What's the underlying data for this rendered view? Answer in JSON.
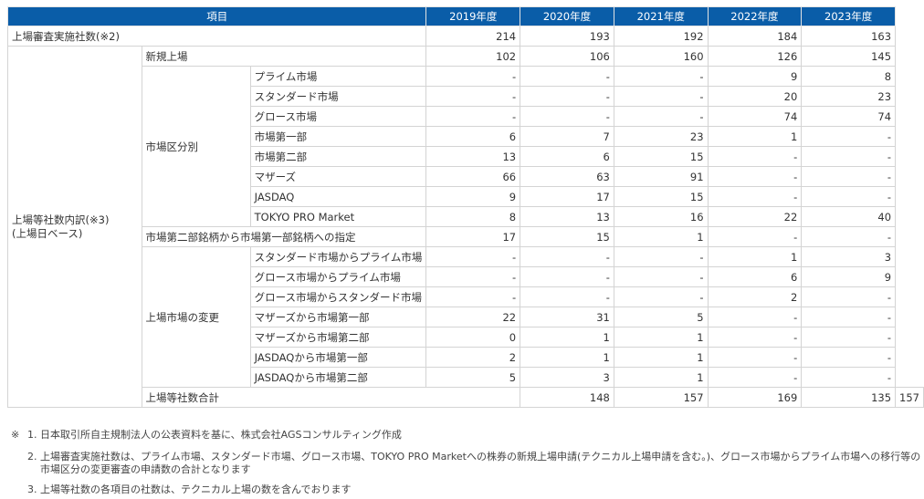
{
  "table": {
    "headers": [
      "項目",
      "2019年度",
      "2020年度",
      "2021年度",
      "2022年度",
      "2023年度"
    ],
    "rows": {
      "total_examined": {
        "label": "上場審査実施社数(※2)",
        "values": [
          "214",
          "193",
          "192",
          "184",
          "163"
        ]
      },
      "new_listing": {
        "label": "新規上場",
        "values": [
          "102",
          "106",
          "160",
          "126",
          "145"
        ]
      },
      "breakdown_label": "上場等社数内訳(※3)\n(上場日ベース)",
      "market_segment_label": "市場区分別",
      "segments": [
        {
          "label": "プライム市場",
          "values": [
            "-",
            "-",
            "-",
            "9",
            "8"
          ]
        },
        {
          "label": "スタンダード市場",
          "values": [
            "-",
            "-",
            "-",
            "20",
            "23"
          ]
        },
        {
          "label": "グロース市場",
          "values": [
            "-",
            "-",
            "-",
            "74",
            "74"
          ]
        },
        {
          "label": "市場第一部",
          "values": [
            "6",
            "7",
            "23",
            "1",
            "-"
          ]
        },
        {
          "label": "市場第二部",
          "values": [
            "13",
            "6",
            "15",
            "-",
            "-"
          ]
        },
        {
          "label": "マザーズ",
          "values": [
            "66",
            "63",
            "91",
            "-",
            "-"
          ]
        },
        {
          "label": "JASDAQ",
          "values": [
            "9",
            "17",
            "15",
            "-",
            "-"
          ]
        },
        {
          "label": "TOKYO PRO Market",
          "values": [
            "8",
            "13",
            "16",
            "22",
            "40"
          ]
        }
      ],
      "designation": {
        "label": "市場第二部銘柄から市場第一部銘柄への指定",
        "values": [
          "17",
          "15",
          "1",
          "-",
          "-"
        ]
      },
      "market_change_label": "上場市場の変更",
      "changes": [
        {
          "label": "スタンダード市場からプライム市場",
          "values": [
            "-",
            "-",
            "-",
            "1",
            "3"
          ]
        },
        {
          "label": "グロース市場からプライム市場",
          "values": [
            "-",
            "-",
            "-",
            "6",
            "9"
          ]
        },
        {
          "label": "グロース市場からスタンダード市場",
          "values": [
            "-",
            "-",
            "-",
            "2",
            "-"
          ]
        },
        {
          "label": "マザーズから市場第一部",
          "values": [
            "22",
            "31",
            "5",
            "-",
            "-"
          ]
        },
        {
          "label": "マザーズから市場第二部",
          "values": [
            "0",
            "1",
            "1",
            "-",
            "-"
          ]
        },
        {
          "label": "JASDAQから市場第一部",
          "values": [
            "2",
            "1",
            "1",
            "-",
            "-"
          ]
        },
        {
          "label": "JASDAQから市場第二部",
          "values": [
            "5",
            "3",
            "1",
            "-",
            "-"
          ]
        }
      ],
      "total": {
        "label": "上場等社数合計",
        "values": [
          "148",
          "157",
          "169",
          "135",
          "157"
        ]
      }
    }
  },
  "notes": {
    "mark": "※",
    "items": [
      {
        "num": "1.",
        "text": "日本取引所自主規制法人の公表資料を基に、株式会社AGSコンサルティング作成"
      },
      {
        "num": "2.",
        "text": "上場審査実施社数は、プライム市場、スタンダード市場、グロース市場、TOKYO PRO Marketへの株券の新規上場申請(テクニカル上場申請を含む。)、グロース市場からプライム市場への移行等の",
        "text2": "市場区分の変更審査の申請数の合計となります"
      },
      {
        "num": "3.",
        "text": "上場等社数の各項目の社数は、テクニカル上場の数を含んでおります"
      }
    ]
  }
}
